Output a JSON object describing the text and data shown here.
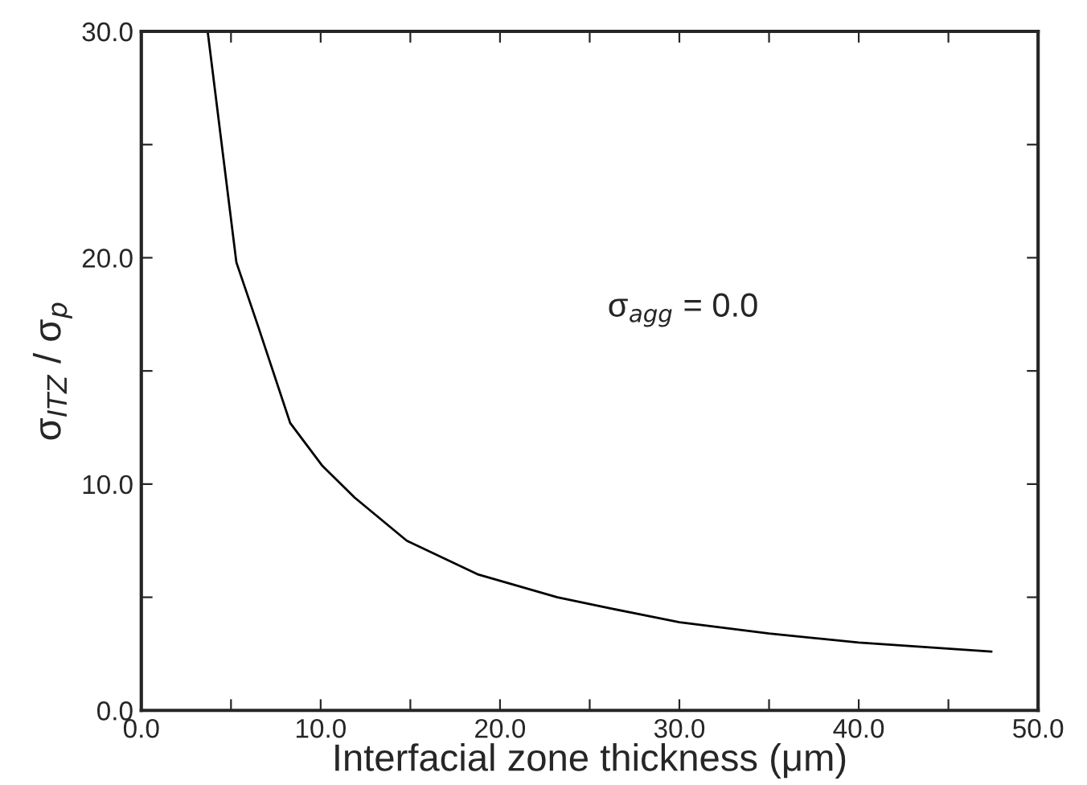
{
  "chart_data": {
    "type": "line",
    "xlabel": "Interfacial zone thickness (μm)",
    "ylabel": "σ$_{ITZ}$ / σ$_{p}$",
    "annotations": [
      "σ$_{agg}$ = 0.0"
    ],
    "series": [
      {
        "color": "#000000",
        "x": [
          3.7,
          5.3,
          6.5,
          8.3,
          10.1,
          11.9,
          14.8,
          18.8,
          23.2,
          26.2,
          30.0,
          35.0,
          40.0,
          47.4
        ],
        "values": [
          30.0,
          19.8,
          17.0,
          12.7,
          10.8,
          9.4,
          7.5,
          6.0,
          5.0,
          4.5,
          3.9,
          3.4,
          3.0,
          2.6
        ]
      }
    ],
    "xlim": [
      0,
      50
    ],
    "ylim": [
      0,
      30
    ],
    "xticks": [
      {
        "value": 0,
        "label": "0.0"
      },
      {
        "value": 5,
        "label": null
      },
      {
        "value": 10,
        "label": "10.0"
      },
      {
        "value": 15,
        "label": null
      },
      {
        "value": 20,
        "label": "20.0"
      },
      {
        "value": 25,
        "label": null
      },
      {
        "value": 30,
        "label": "30.0"
      },
      {
        "value": 35,
        "label": null
      },
      {
        "value": 40,
        "label": "40.0"
      },
      {
        "value": 45,
        "label": null
      },
      {
        "value": 50,
        "label": "50.0"
      }
    ],
    "yticks": [
      {
        "value": 0,
        "label": "0.0"
      },
      {
        "value": 5,
        "label": null
      },
      {
        "value": 10,
        "label": "10.0"
      },
      {
        "value": 15,
        "label": null
      },
      {
        "value": 20,
        "label": "20.0"
      },
      {
        "value": 25,
        "label": null
      },
      {
        "value": 30,
        "label": "30.0"
      }
    ],
    "grid": false,
    "legend": false,
    "marker": "none",
    "line_style": "solid"
  }
}
